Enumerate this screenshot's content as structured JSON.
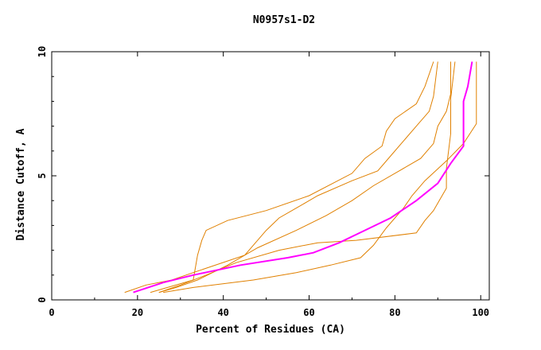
{
  "chart_data": {
    "type": "line",
    "title": "N0957s1-D2",
    "xlabel": "Percent of Residues (CA)",
    "ylabel": "Distance Cutoff, A",
    "xlim": [
      0,
      102
    ],
    "ylim": [
      0,
      10
    ],
    "x_ticks": [
      0,
      20,
      40,
      60,
      80,
      100
    ],
    "y_ticks": [
      0,
      5,
      10
    ],
    "grid": false,
    "colors": {
      "series": "#e08000",
      "highlight": "#ff00ff",
      "axes": "#000000"
    },
    "series": [
      {
        "highlight": false,
        "points": [
          [
            17,
            0.3
          ],
          [
            22,
            0.6
          ],
          [
            28,
            0.8
          ],
          [
            33,
            1.1
          ],
          [
            45,
            1.8
          ],
          [
            50,
            2.8
          ],
          [
            53,
            3.3
          ],
          [
            57,
            3.7
          ],
          [
            62,
            4.2
          ],
          [
            70,
            4.8
          ],
          [
            76,
            5.2
          ],
          [
            79,
            5.8
          ],
          [
            85,
            7.0
          ],
          [
            88,
            7.6
          ],
          [
            89,
            8.2
          ],
          [
            90,
            9.6
          ]
        ]
      },
      {
        "highlight": false,
        "points": [
          [
            25,
            0.3
          ],
          [
            30,
            0.6
          ],
          [
            36,
            1.0
          ],
          [
            43,
            1.5
          ],
          [
            53,
            2.0
          ],
          [
            62,
            2.3
          ],
          [
            71,
            2.4
          ],
          [
            85,
            2.7
          ],
          [
            87,
            3.2
          ],
          [
            89,
            3.6
          ],
          [
            92,
            4.5
          ],
          [
            92,
            5.3
          ],
          [
            93,
            6.7
          ],
          [
            93,
            7.5
          ],
          [
            93,
            8.1
          ],
          [
            94,
            9.6
          ]
        ]
      },
      {
        "highlight": false,
        "points": [
          [
            25,
            0.3
          ],
          [
            29,
            0.5
          ],
          [
            34,
            0.8
          ],
          [
            41,
            1.4
          ],
          [
            48,
            2.1
          ],
          [
            57,
            2.8
          ],
          [
            64,
            3.4
          ],
          [
            70,
            4.0
          ],
          [
            75,
            4.6
          ],
          [
            81,
            5.2
          ],
          [
            86,
            5.7
          ],
          [
            89,
            6.3
          ],
          [
            90,
            7.0
          ],
          [
            92,
            7.6
          ],
          [
            93,
            8.3
          ],
          [
            93,
            9.6
          ]
        ]
      },
      {
        "highlight": false,
        "points": [
          [
            26,
            0.3
          ],
          [
            33,
            0.5
          ],
          [
            47,
            0.8
          ],
          [
            57,
            1.1
          ],
          [
            65,
            1.4
          ],
          [
            72,
            1.7
          ],
          [
            75,
            2.2
          ],
          [
            78,
            2.9
          ],
          [
            80,
            3.3
          ],
          [
            82,
            3.7
          ],
          [
            84,
            4.2
          ],
          [
            87,
            4.8
          ],
          [
            92,
            5.6
          ],
          [
            96,
            6.3
          ],
          [
            99,
            7.1
          ],
          [
            99,
            9.6
          ]
        ]
      },
      {
        "highlight": false,
        "points": [
          [
            23,
            0.3
          ],
          [
            33,
            0.8
          ],
          [
            34,
            1.8
          ],
          [
            35,
            2.4
          ],
          [
            36,
            2.8
          ],
          [
            41,
            3.2
          ],
          [
            50,
            3.6
          ],
          [
            60,
            4.2
          ],
          [
            70,
            5.1
          ],
          [
            73,
            5.7
          ],
          [
            77,
            6.2
          ],
          [
            78,
            6.8
          ],
          [
            80,
            7.3
          ],
          [
            85,
            7.9
          ],
          [
            87,
            8.6
          ],
          [
            89,
            9.6
          ]
        ]
      },
      {
        "highlight": true,
        "points": [
          [
            19,
            0.3
          ],
          [
            26,
            0.7
          ],
          [
            33,
            1.0
          ],
          [
            44,
            1.4
          ],
          [
            55,
            1.7
          ],
          [
            61,
            1.9
          ],
          [
            67,
            2.3
          ],
          [
            73,
            2.8
          ],
          [
            79,
            3.3
          ],
          [
            85,
            4.0
          ],
          [
            90,
            4.7
          ],
          [
            93,
            5.5
          ],
          [
            96,
            6.2
          ],
          [
            96,
            7.1
          ],
          [
            96,
            8.0
          ],
          [
            97,
            8.6
          ],
          [
            98,
            9.6
          ]
        ]
      }
    ]
  }
}
